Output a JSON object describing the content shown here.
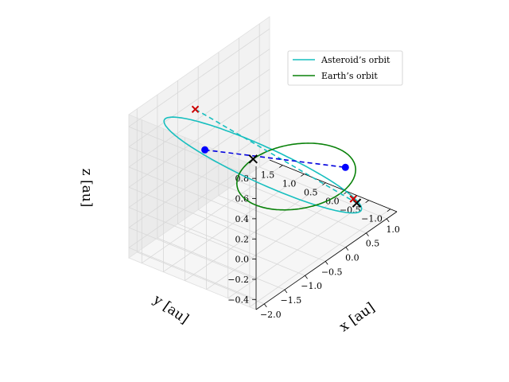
{
  "chart_data": {
    "type": "line3d",
    "legend": {
      "placement": "top-right",
      "entries": [
        {
          "label": "Asteroid’s orbit",
          "color": "#17bfbf"
        },
        {
          "label": "Earth’s orbit",
          "color": "#0a820a"
        }
      ]
    },
    "axes": {
      "x": {
        "label": "x [au]",
        "ticks": [
          "−2.0",
          "−1.5",
          "−1.0",
          "−0.5",
          "0.0",
          "0.5",
          "1.0"
        ],
        "tick_values": [
          -2.0,
          -1.5,
          -1.0,
          -0.5,
          0.0,
          0.5,
          1.0
        ],
        "range": [
          -2.2,
          1.25
        ]
      },
      "y": {
        "label": "y [au]",
        "ticks": [
          "−1.0",
          "−0.5",
          "0.0",
          "0.5",
          "1.0",
          "1.5"
        ],
        "tick_values": [
          -1.0,
          -0.5,
          0.0,
          0.5,
          1.0,
          1.5
        ],
        "range": [
          -1.15,
          1.8
        ]
      },
      "z": {
        "label": "z [au]",
        "ticks": [
          "−0.4",
          "−0.2",
          "0.0",
          "0.2",
          "0.4",
          "0.6",
          "0.8"
        ],
        "tick_values": [
          -0.4,
          -0.2,
          0.0,
          0.2,
          0.4,
          0.6,
          0.8
        ],
        "range": [
          -0.5,
          0.92
        ]
      }
    },
    "grid": true,
    "series": [
      {
        "kind": "ellipse",
        "label_ref": 0,
        "color": "#17bfbf",
        "center": [
          -0.45,
          0.35,
          0.18
        ],
        "u": [
          1.3,
          -0.8,
          -0.52
        ],
        "v": [
          0.2,
          1.25,
          0.1
        ]
      },
      {
        "kind": "ellipse",
        "label_ref": 1,
        "color": "#0a820a",
        "center": [
          0.0,
          0.0,
          0.0
        ],
        "u": [
          1.0,
          0.0,
          0.0
        ],
        "v": [
          0.0,
          1.0,
          0.0
        ]
      },
      {
        "kind": "dashed-segment",
        "color": "#17bfbf",
        "points": [
          [
            -1.1,
            1.3,
            0.75
          ],
          [
            0.9,
            -0.55,
            -0.42
          ]
        ]
      },
      {
        "kind": "dashed-segment",
        "color": "#0000dd",
        "points": [
          [
            -0.95,
            1.22,
            0.32
          ],
          [
            0.76,
            -0.42,
            -0.05
          ]
        ]
      }
    ],
    "markers": [
      {
        "kind": "x",
        "color": "#000000",
        "point": [
          0.0,
          1.0,
          0.0
        ]
      },
      {
        "kind": "x",
        "color": "#000000",
        "point": [
          0.9,
          -0.55,
          -0.42
        ]
      },
      {
        "kind": "x",
        "color": "#cc0000",
        "point": [
          -1.1,
          1.3,
          0.75
        ]
      },
      {
        "kind": "x",
        "color": "#cc0000",
        "point": [
          0.87,
          -0.5,
          -0.38
        ]
      },
      {
        "kind": "dot",
        "color": "#0000ff",
        "point": [
          -0.95,
          1.22,
          0.32
        ]
      },
      {
        "kind": "dot",
        "color": "#0000ff",
        "point": [
          0.76,
          -0.42,
          -0.05
        ]
      }
    ]
  }
}
